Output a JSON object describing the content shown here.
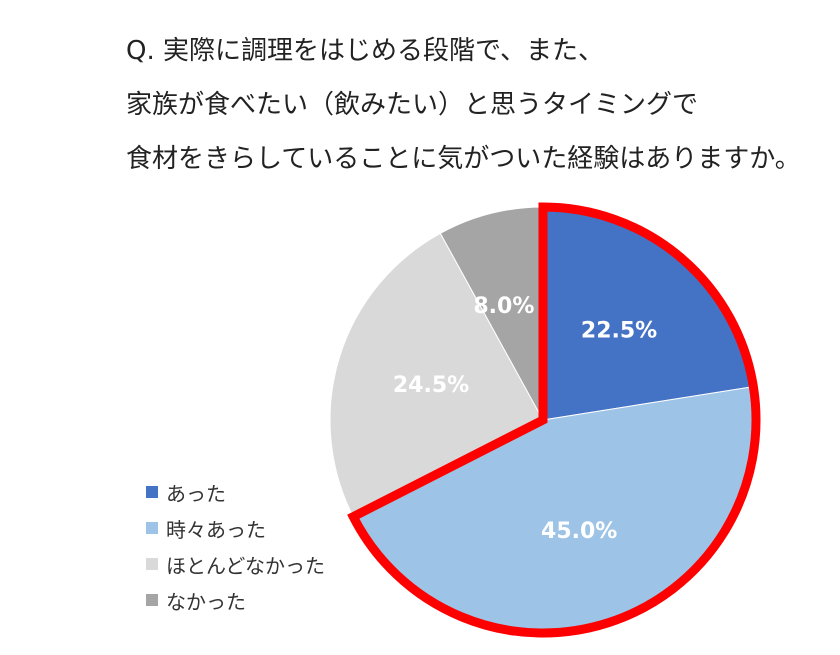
{
  "question": {
    "lines": [
      "Q. 実際に調理をはじめる段階で、また、",
      "家族が食べたい（飲みたい）と思うタイミングで",
      "食材をきらしていることに気がついた経験はありますか。"
    ]
  },
  "chart_data": {
    "type": "pie",
    "series": [
      {
        "name": "あった",
        "value": 22.5,
        "label": "22.5%",
        "color": "#4472C4"
      },
      {
        "name": "時々あった",
        "value": 45.0,
        "label": "45.0%",
        "color": "#9DC3E6"
      },
      {
        "name": "ほとんどなかった",
        "value": 24.5,
        "label": "24.5%",
        "color": "#D9D9D9"
      },
      {
        "name": "なかった",
        "value": 8.0,
        "label": "8.0%",
        "color": "#A5A5A5"
      }
    ],
    "start_angle": "12 o'clock",
    "direction": "clockwise",
    "highlight": {
      "series": [
        "あった",
        "時々あった"
      ],
      "color": "#FF0000"
    },
    "legend_position": "bottom-left"
  }
}
